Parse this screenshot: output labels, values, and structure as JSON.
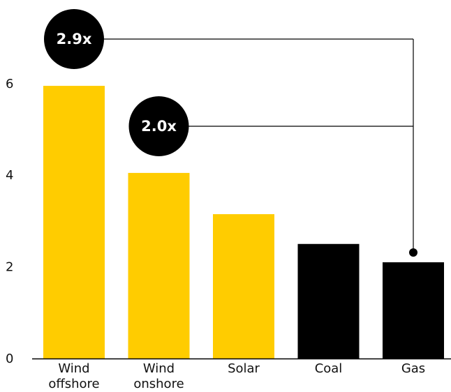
{
  "chart_data": {
    "type": "bar",
    "categories": [
      [
        "Wind",
        "offshore"
      ],
      [
        "Wind",
        "onshore"
      ],
      [
        "Solar"
      ],
      [
        "Coal"
      ],
      [
        "Gas"
      ]
    ],
    "values": [
      5.95,
      4.05,
      3.15,
      2.5,
      2.1
    ],
    "bar_colors": [
      "#FFCC00",
      "#FFCC00",
      "#FFCC00",
      "#000000",
      "#000000"
    ],
    "ylim": [
      0,
      7
    ],
    "y_ticks": [
      0,
      2,
      4,
      6
    ],
    "grid": false,
    "annotations": [
      {
        "label": "2.9x",
        "from_category": 0,
        "to_category": 4
      },
      {
        "label": "2.0x",
        "from_category": 1,
        "to_category": 4
      }
    ]
  },
  "colors": {
    "renewable": "#FFCC00",
    "fossil": "#000000",
    "badge": "#000000",
    "connector": "#000000"
  }
}
